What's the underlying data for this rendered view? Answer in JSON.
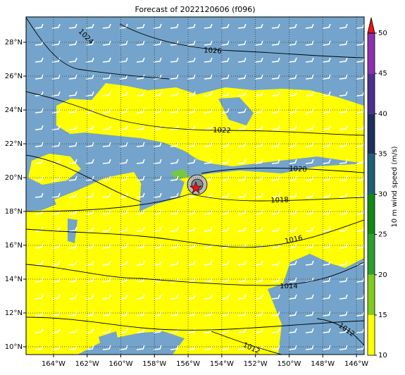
{
  "title": "Forecast of 2022120606 (f096)",
  "map": {
    "xlim": [
      -165.63,
      -145.54
    ],
    "ylim": [
      9.54,
      29.5
    ],
    "xticks": [
      {
        "value": -164,
        "label": "164°W"
      },
      {
        "value": -162,
        "label": "162°W"
      },
      {
        "value": -160,
        "label": "160°W"
      },
      {
        "value": -158,
        "label": "158°W"
      },
      {
        "value": -156,
        "label": "156°W"
      },
      {
        "value": -154,
        "label": "154°W"
      },
      {
        "value": -152,
        "label": "152°W"
      },
      {
        "value": -150,
        "label": "150°W"
      },
      {
        "value": -148,
        "label": "148°W"
      },
      {
        "value": -146,
        "label": "146°W"
      }
    ],
    "yticks": [
      {
        "value": 10,
        "label": "10°N"
      },
      {
        "value": 12,
        "label": "12°N"
      },
      {
        "value": 14,
        "label": "14°N"
      },
      {
        "value": 16,
        "label": "16°N"
      },
      {
        "value": 18,
        "label": "18°N"
      },
      {
        "value": 20,
        "label": "20°N"
      },
      {
        "value": 22,
        "label": "22°N"
      },
      {
        "value": 24,
        "label": "24°N"
      },
      {
        "value": 26,
        "label": "26°N"
      },
      {
        "value": 28,
        "label": "28°N"
      }
    ],
    "grid": true
  },
  "contour_labels": [
    1024,
    1026,
    1022,
    1020,
    1018,
    1016,
    1014,
    1012,
    1012
  ],
  "colorbar": {
    "label": "10 m wind speed (m/s)",
    "lim": [
      10,
      50
    ],
    "ticks": [
      10,
      15,
      20,
      25,
      30,
      35,
      40,
      45,
      50
    ],
    "colors": [
      "#ffff00",
      "#80cc1a",
      "#2ca02c",
      "#128a12",
      "#1f5f7a",
      "#1e2f5e",
      "#4d2f8f",
      "#8e2fb0"
    ],
    "extend_color": "#e8141a"
  }
}
